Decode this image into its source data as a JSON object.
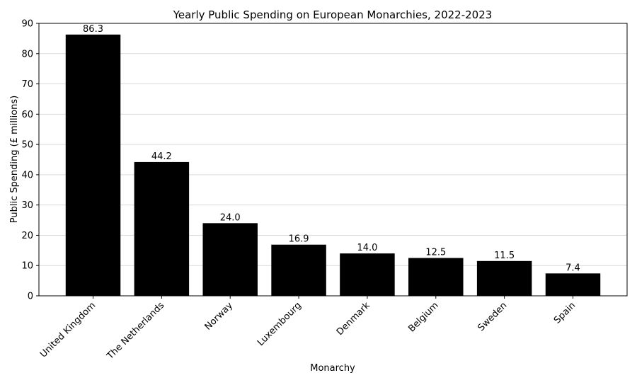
{
  "chart_data": {
    "type": "bar",
    "title": "Yearly Public Spending on European Monarchies, 2022-2023",
    "xlabel": "Monarchy",
    "ylabel": "Public Spending (£ millions)",
    "categories": [
      "United Kingdom",
      "The Netherlands",
      "Norway",
      "Luxembourg",
      "Denmark",
      "Belgium",
      "Sweden",
      "Spain"
    ],
    "values": [
      86.3,
      44.2,
      24.0,
      16.9,
      14.0,
      12.5,
      11.5,
      7.4
    ],
    "data_labels": [
      "86.3",
      "44.2",
      "24.0",
      "16.9",
      "14.0",
      "12.5",
      "11.5",
      "7.4"
    ],
    "ylim": [
      0,
      90
    ],
    "yticks": [
      0,
      10,
      20,
      30,
      40,
      50,
      60,
      70,
      80,
      90
    ],
    "grid": "y",
    "legend": "none",
    "bar_color": "#000000",
    "grid_color": "#d9d9d9"
  }
}
